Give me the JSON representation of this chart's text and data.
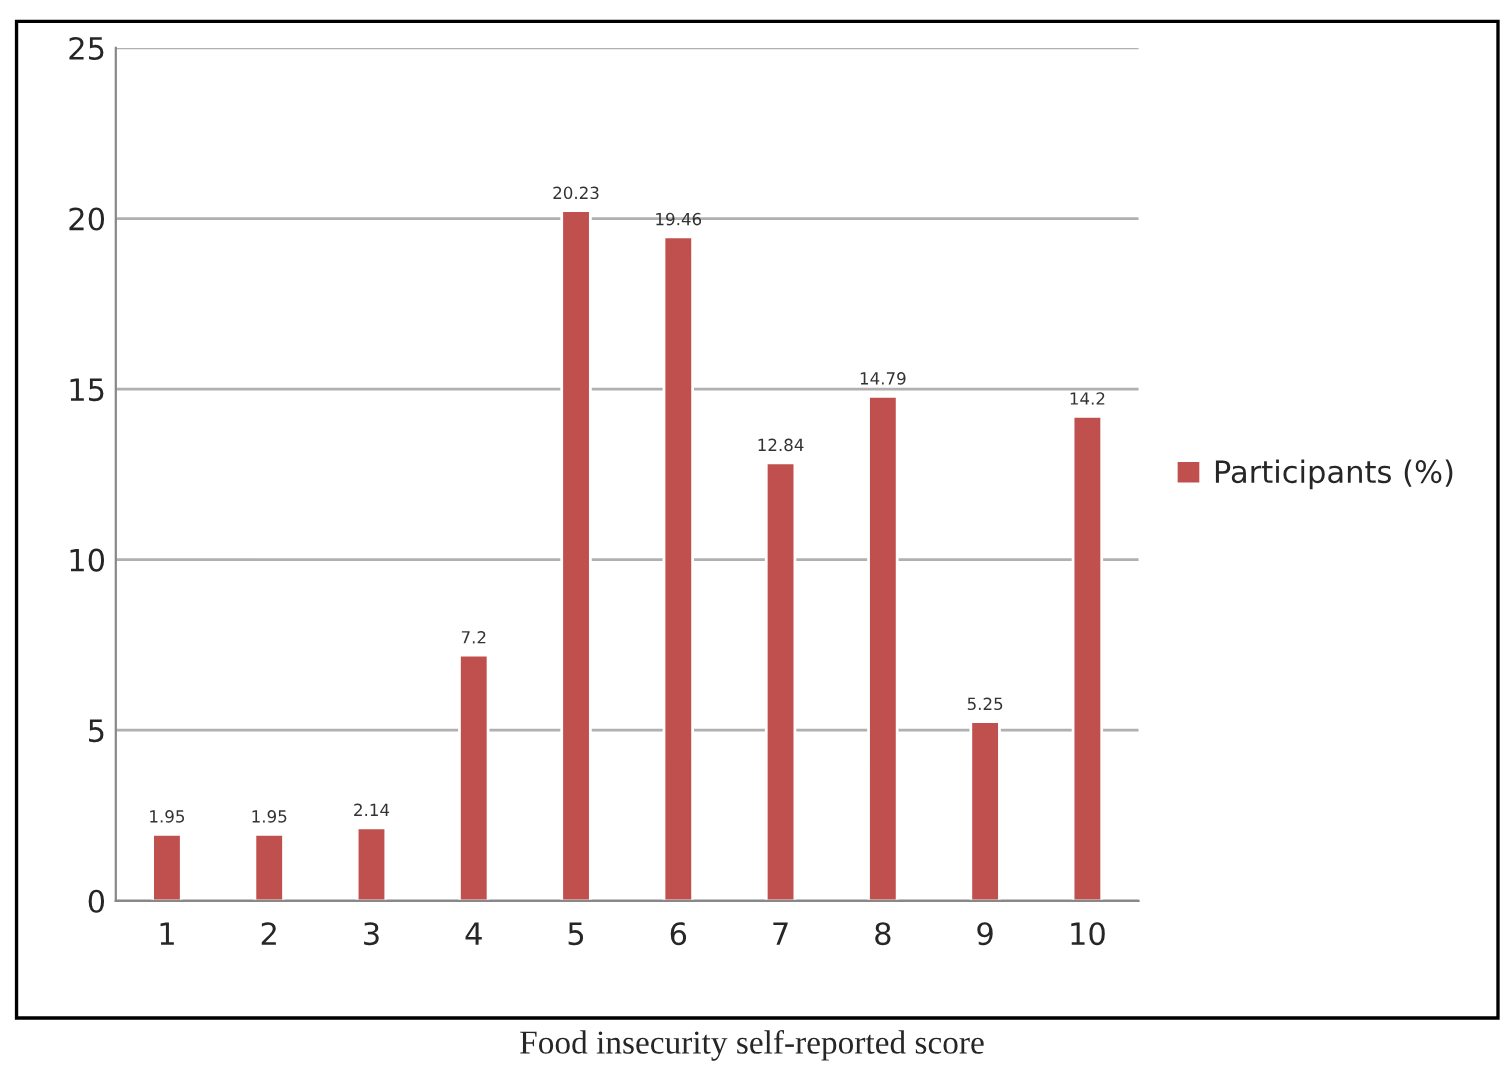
{
  "chart_data": {
    "type": "bar",
    "xlabel": "Food insecurity self-reported score",
    "categories": [
      "1",
      "2",
      "3",
      "4",
      "5",
      "6",
      "7",
      "8",
      "9",
      "10"
    ],
    "series": [
      {
        "name": "Participants (%)",
        "color": "#c0504d",
        "values": [
          1.95,
          1.95,
          2.14,
          7.2,
          20.23,
          19.46,
          12.84,
          14.79,
          5.25,
          14.2
        ]
      }
    ],
    "ylim": [
      0,
      25
    ],
    "yticks": [
      0,
      5,
      10,
      15,
      20,
      25
    ],
    "grid": "y",
    "legend": "right",
    "data_labels": true
  }
}
